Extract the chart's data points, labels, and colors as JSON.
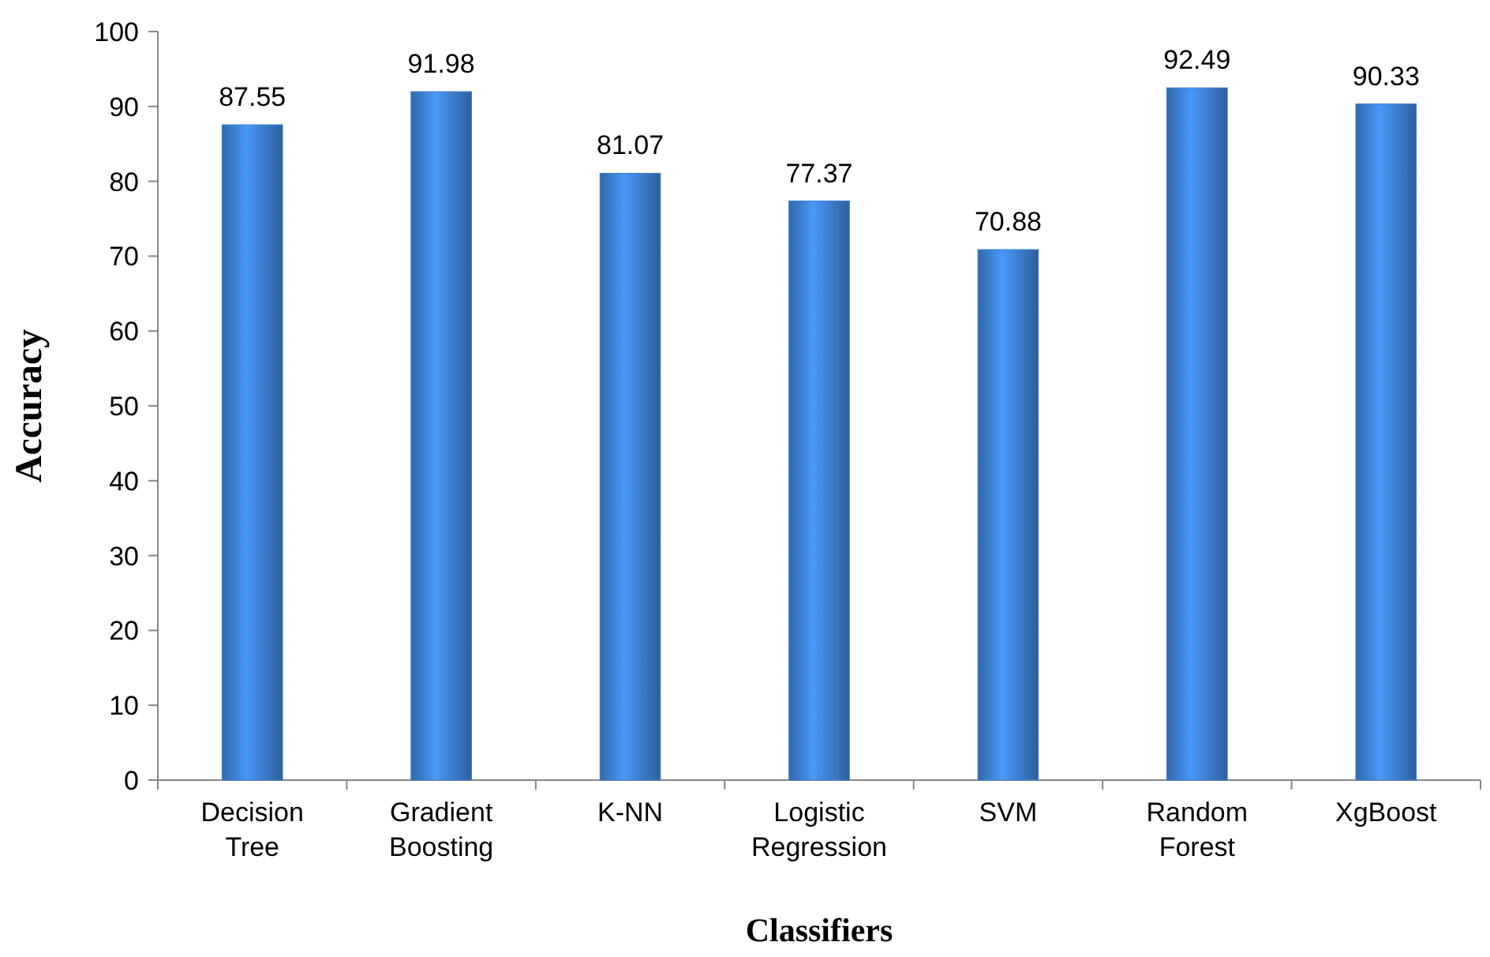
{
  "chart_data": {
    "type": "bar",
    "xlabel": "Classifiers",
    "ylabel": "Accuracy",
    "categories": [
      "Decision Tree",
      "Gradient Boosting",
      "K-NN",
      "Logistic Regression",
      "SVM",
      "Random Forest",
      "XgBoost"
    ],
    "values": [
      87.55,
      91.98,
      81.07,
      77.37,
      70.88,
      92.49,
      90.33
    ],
    "color": "#3d7fd0",
    "ylim": [
      0,
      100
    ],
    "yticks": [
      0,
      10,
      20,
      30,
      40,
      50,
      60,
      70,
      80,
      90,
      100
    ],
    "grid": false,
    "data_labels": true
  }
}
